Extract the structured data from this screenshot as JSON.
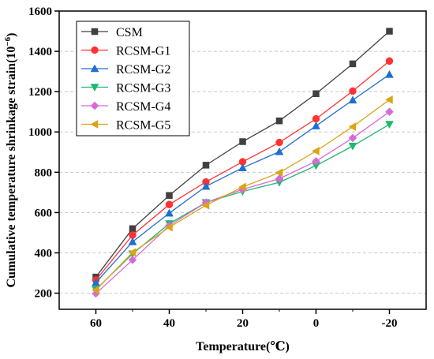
{
  "chart_data": {
    "type": "line",
    "title": "",
    "xlabel": "Temperature(℃)",
    "ylabel": "Cumulative temperature shrinkage strain(10",
    "ylabel_sup": "−6",
    "ylabel_close": ")",
    "x": [
      60,
      50,
      40,
      30,
      20,
      10,
      0,
      -10,
      -20
    ],
    "xticks": [
      60,
      40,
      20,
      0,
      -20
    ],
    "xtick_labels": [
      "60",
      "40",
      "20",
      "0",
      "-20"
    ],
    "yticks": [
      200,
      400,
      600,
      800,
      1000,
      1200,
      1400,
      1600
    ],
    "ytick_labels": [
      "200",
      "400",
      "600",
      "800",
      "1000",
      "1200",
      "1400",
      "1600"
    ],
    "xlim": [
      70,
      -30
    ],
    "ylim": [
      120,
      1600
    ],
    "x_reversed": true,
    "grid": "horizontal-dashed",
    "legend_position": "top-left",
    "series": [
      {
        "name": "CSM",
        "color": "#404040",
        "marker": "square",
        "values": [
          280,
          520,
          685,
          835,
          952,
          1055,
          1190,
          1338,
          1500
        ]
      },
      {
        "name": "RCSM-G1",
        "color": "#ff3333",
        "marker": "circle",
        "values": [
          265,
          488,
          640,
          752,
          852,
          948,
          1065,
          1203,
          1352
        ]
      },
      {
        "name": "RCSM-G2",
        "color": "#1e6fd0",
        "marker": "triangle-up",
        "values": [
          252,
          455,
          597,
          730,
          822,
          902,
          1030,
          1158,
          1285
        ]
      },
      {
        "name": "RCSM-G3",
        "color": "#1fb871",
        "marker": "triangle-down",
        "values": [
          218,
          395,
          545,
          650,
          705,
          750,
          833,
          930,
          1038
        ]
      },
      {
        "name": "RCSM-G4",
        "color": "#d86ad8",
        "marker": "diamond",
        "values": [
          198,
          365,
          535,
          650,
          715,
          768,
          855,
          970,
          1100
        ]
      },
      {
        "name": "RCSM-G5",
        "color": "#d9a514",
        "marker": "triangle-left",
        "values": [
          215,
          402,
          527,
          636,
          727,
          798,
          905,
          1026,
          1160
        ]
      }
    ]
  }
}
